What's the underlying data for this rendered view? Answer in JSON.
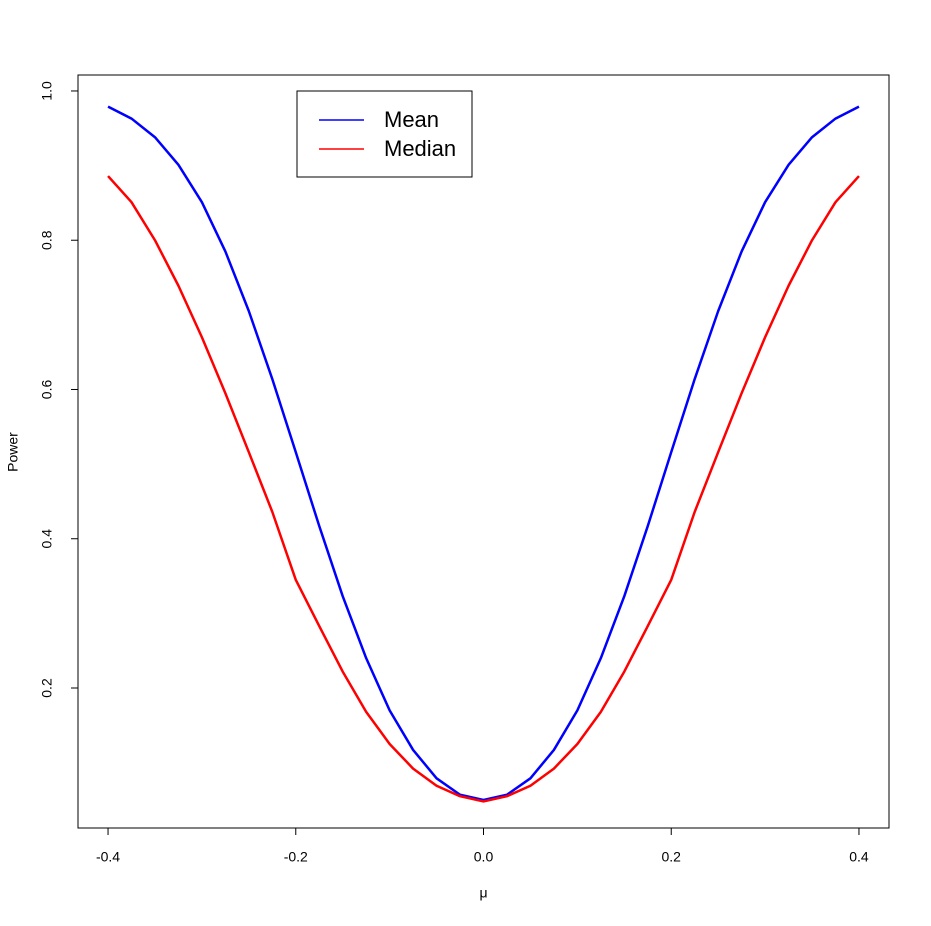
{
  "chart_data": {
    "type": "line",
    "xlabel": "μ",
    "ylabel": "Power",
    "x": [
      -0.4,
      -0.375,
      -0.35,
      -0.325,
      -0.3,
      -0.275,
      -0.25,
      -0.225,
      -0.2,
      -0.175,
      -0.15,
      -0.125,
      -0.1,
      -0.075,
      -0.05,
      -0.025,
      0,
      0.025,
      0.05,
      0.075,
      0.1,
      0.125,
      0.15,
      0.175,
      0.2,
      0.225,
      0.25,
      0.275,
      0.3,
      0.325,
      0.35,
      0.375,
      0.4
    ],
    "series": [
      {
        "name": "Mean",
        "color": "#0000ff",
        "values": [
          0.979,
          0.963,
          0.938,
          0.901,
          0.851,
          0.785,
          0.705,
          0.614,
          0.516,
          0.417,
          0.323,
          0.24,
          0.17,
          0.117,
          0.079,
          0.057,
          0.05,
          0.057,
          0.079,
          0.117,
          0.17,
          0.24,
          0.323,
          0.417,
          0.516,
          0.614,
          0.705,
          0.785,
          0.851,
          0.901,
          0.938,
          0.963,
          0.979
        ]
      },
      {
        "name": "Median",
        "color": "#ff0000",
        "values": [
          0.886,
          0.851,
          0.8,
          0.739,
          0.67,
          0.595,
          0.516,
          0.436,
          0.345,
          0.283,
          0.222,
          0.168,
          0.125,
          0.092,
          0.069,
          0.055,
          0.048,
          0.055,
          0.069,
          0.092,
          0.125,
          0.168,
          0.222,
          0.283,
          0.345,
          0.436,
          0.516,
          0.595,
          0.67,
          0.739,
          0.8,
          0.851,
          0.886
        ]
      }
    ],
    "xlim": [
      -0.432,
      0.432
    ],
    "ylim": [
      0.0124,
      1.0214
    ],
    "xticks": [
      -0.4,
      -0.2,
      {
        "value": 0,
        "label": "0.0"
      },
      0.2,
      0.4
    ],
    "yticks": [
      0.2,
      0.4,
      0.6,
      0.8,
      {
        "value": 1,
        "label": "1.0"
      }
    ]
  }
}
